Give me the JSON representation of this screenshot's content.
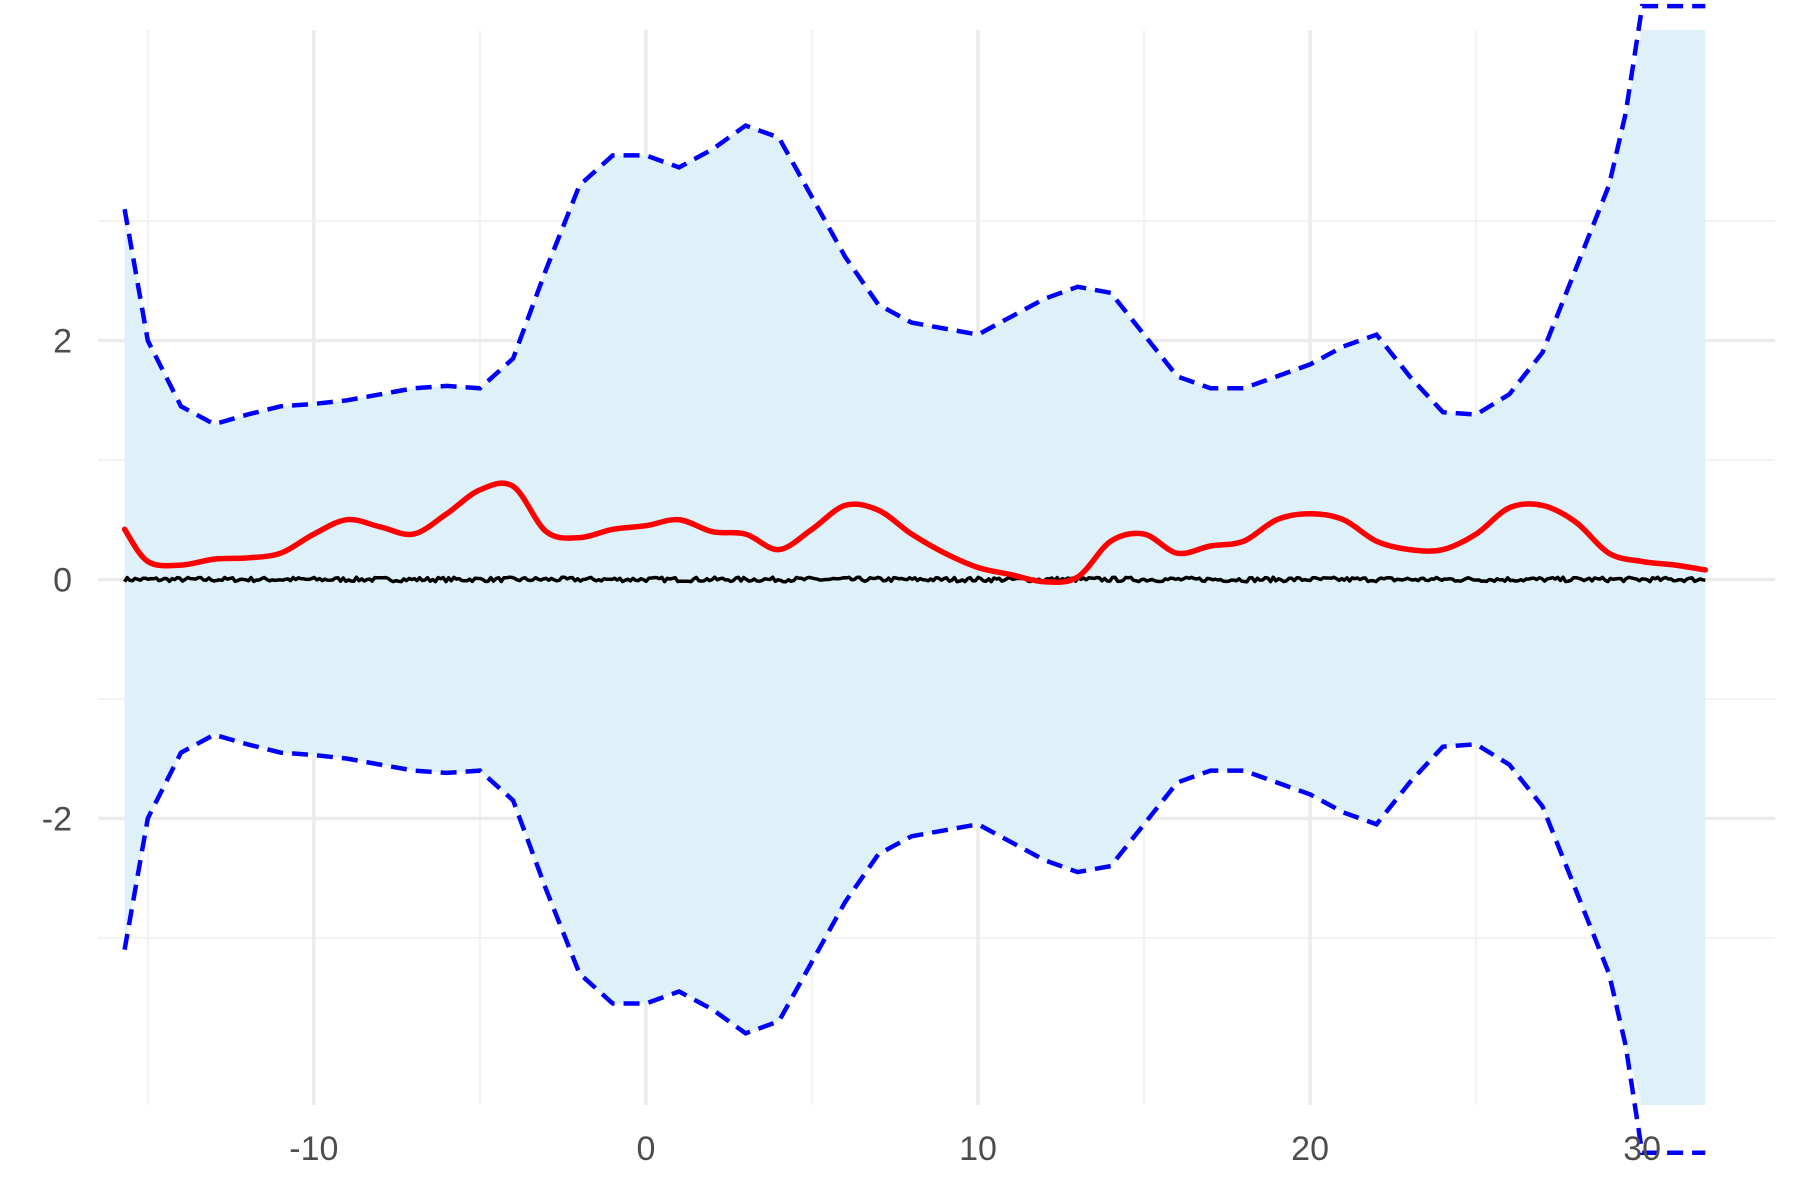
{
  "chart_data": {
    "type": "line",
    "title": "",
    "xlabel": "",
    "ylabel": "",
    "xlim": [
      -16.5,
      34
    ],
    "ylim": [
      -4.4,
      4.6
    ],
    "x_ticks": [
      -10,
      0,
      10,
      20,
      30
    ],
    "x_tick_labels": [
      "-10",
      "0",
      "10",
      "20",
      "30"
    ],
    "y_ticks": [
      -2,
      0,
      2
    ],
    "y_tick_labels": [
      "-2",
      "0",
      "2"
    ],
    "grid": true,
    "legend": "none",
    "colors": {
      "band_fill": "#dff1f8",
      "band_bounds": "#0000ff",
      "smooth_line": "#ff0000",
      "data_line": "#000000",
      "grid_major": "#ebebeb",
      "grid_minor": "#f2f2f2"
    },
    "band": {
      "x": [
        -15.7,
        -15,
        -14,
        -13,
        -12,
        -11,
        -10,
        -9,
        -8,
        -7,
        -6,
        -5,
        -4,
        -3,
        -2,
        -1,
        0,
        1,
        2,
        3,
        4,
        5,
        6,
        7,
        8,
        9,
        10,
        11,
        12,
        13,
        14,
        15,
        16,
        17,
        18,
        19,
        20,
        21,
        22,
        23,
        24,
        25,
        26,
        27,
        28,
        29,
        29.5,
        30,
        31.9
      ],
      "upper": [
        3.1,
        2.0,
        1.45,
        1.3,
        1.38,
        1.45,
        1.47,
        1.5,
        1.55,
        1.6,
        1.62,
        1.6,
        1.85,
        2.6,
        3.3,
        3.55,
        3.55,
        3.45,
        3.6,
        3.8,
        3.7,
        3.2,
        2.7,
        2.3,
        2.15,
        2.1,
        2.05,
        2.2,
        2.35,
        2.45,
        2.4,
        2.05,
        1.7,
        1.6,
        1.6,
        1.7,
        1.8,
        1.95,
        2.05,
        1.7,
        1.4,
        1.38,
        1.55,
        1.9,
        2.6,
        3.3,
        3.9,
        4.8,
        4.8
      ],
      "lower": [
        -3.1,
        -2.0,
        -1.45,
        -1.3,
        -1.38,
        -1.45,
        -1.47,
        -1.5,
        -1.55,
        -1.6,
        -1.62,
        -1.6,
        -1.85,
        -2.6,
        -3.3,
        -3.55,
        -3.55,
        -3.45,
        -3.6,
        -3.8,
        -3.7,
        -3.2,
        -2.7,
        -2.3,
        -2.15,
        -2.1,
        -2.05,
        -2.2,
        -2.35,
        -2.45,
        -2.4,
        -2.05,
        -1.7,
        -1.6,
        -1.6,
        -1.7,
        -1.8,
        -1.95,
        -2.05,
        -1.7,
        -1.4,
        -1.38,
        -1.55,
        -1.9,
        -2.6,
        -3.3,
        -3.9,
        -4.8,
        -4.8
      ]
    },
    "series": [
      {
        "role": "smooth",
        "x": [
          -15.7,
          -15,
          -14,
          -13,
          -12,
          -11,
          -10,
          -9,
          -8,
          -7,
          -6,
          -5,
          -4,
          -3,
          -2,
          -1,
          0,
          1,
          2,
          3,
          4,
          5,
          6,
          7,
          8,
          9,
          10,
          11,
          12,
          13,
          14,
          15,
          16,
          17,
          18,
          19,
          20,
          21,
          22,
          23,
          24,
          25,
          26,
          27,
          28,
          29,
          30,
          31,
          31.9
        ],
        "values": [
          0.42,
          0.15,
          0.12,
          0.17,
          0.18,
          0.22,
          0.38,
          0.5,
          0.44,
          0.38,
          0.55,
          0.75,
          0.78,
          0.4,
          0.35,
          0.42,
          0.45,
          0.5,
          0.4,
          0.38,
          0.25,
          0.42,
          0.62,
          0.58,
          0.38,
          0.22,
          0.1,
          0.04,
          -0.02,
          0.02,
          0.32,
          0.38,
          0.22,
          0.28,
          0.32,
          0.5,
          0.55,
          0.5,
          0.32,
          0.25,
          0.25,
          0.38,
          0.6,
          0.62,
          0.48,
          0.22,
          0.15,
          0.12,
          0.08
        ]
      },
      {
        "role": "data",
        "x_range": [
          -15.7,
          31.9
        ],
        "mean": 0.0,
        "noise_sd": 0.015
      }
    ]
  }
}
